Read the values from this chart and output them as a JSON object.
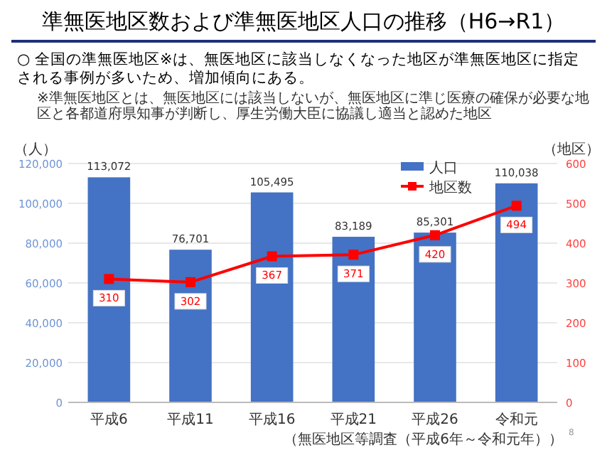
{
  "chart_data": {
    "type": "bar",
    "title": "準無医地区数および準無医地区人口の推移（H6→R1）",
    "subtitle": "○ 全国の準無医地区※は、無医地区に該当しなくなった地区が準無医地区に指定される事例が多いため、増加傾向にある。",
    "annotations": [
      "※準無医地区とは、無医地区には該当しないが、無医地区に準じ医療の確保が必要な地区と各都道府県知事が判断し、厚生労働大臣に協議し適当と認めた地区",
      "（無医地区等調査（平成6年～令和元年））",
      "8"
    ],
    "ylabel": "（人）",
    "y2label": "（地区）",
    "categories": [
      "平成6",
      "平成11",
      "平成16",
      "平成21",
      "平成26",
      "令和元"
    ],
    "series": [
      {
        "name": "人口",
        "color": "#4472c4",
        "values": [
          113072,
          76701,
          105495,
          83189,
          85301,
          110038
        ],
        "value_labels": [
          "113,072",
          "76,701",
          "105,495",
          "83,189",
          "85,301",
          "110,038"
        ]
      },
      {
        "name": "地区数",
        "type": "line",
        "axis": "y2",
        "color": "#ff0000",
        "marker": "square",
        "values": [
          310,
          302,
          367,
          371,
          420,
          494
        ],
        "value_labels": [
          "310",
          "302",
          "367",
          "371",
          "420",
          "494"
        ]
      }
    ],
    "ylim": [
      0,
      120000
    ],
    "yticks": [
      {
        "value": 0,
        "label": "0"
      },
      {
        "value": 20000,
        "label": "20,000"
      },
      {
        "value": 40000,
        "label": "40,000"
      },
      {
        "value": 60000,
        "label": "60,000"
      },
      {
        "value": 80000,
        "label": "80,000"
      },
      {
        "value": 100000,
        "label": "100,000"
      },
      {
        "value": 120000,
        "label": "120,000"
      }
    ],
    "y2lim": [
      0,
      600
    ],
    "y2ticks": [
      0,
      100,
      200,
      300,
      400,
      500,
      600
    ],
    "grid": "y",
    "legend": "top right"
  }
}
